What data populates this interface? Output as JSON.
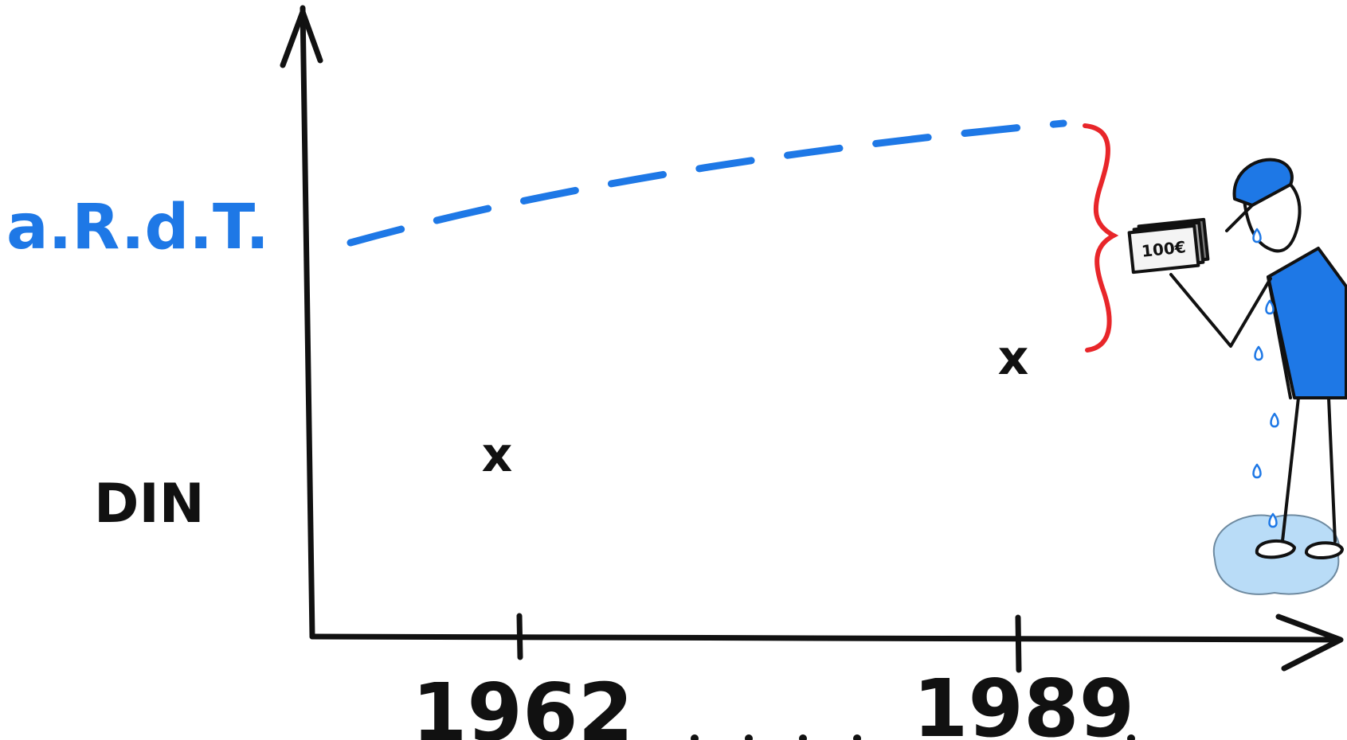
{
  "labels": {
    "blue_line": "a.R.d.T.",
    "marker_row": "DIN",
    "point_marker": "x",
    "banknote": "100€"
  },
  "axis": {
    "x_ticks": [
      "1962",
      "1989"
    ]
  },
  "colors": {
    "ink": "#111111",
    "blue": "#1e78e6",
    "red": "#e8262a",
    "water": "#b9dcf7",
    "drop": "#ffffff"
  }
}
